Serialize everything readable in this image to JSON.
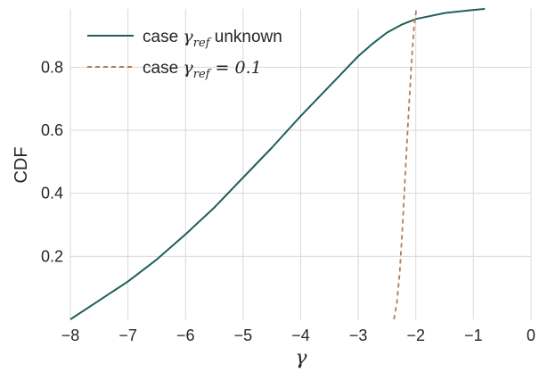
{
  "chart_data": {
    "type": "line",
    "xlabel": "γ",
    "ylabel": "CDF",
    "xlim": [
      -8,
      0
    ],
    "ylim": [
      0,
      0.985
    ],
    "xticks": [
      "−8",
      "−7",
      "−6",
      "−5",
      "−4",
      "−3",
      "−2",
      "−1",
      "0"
    ],
    "yticks": [
      "0.2",
      "0.4",
      "0.6",
      "0.8"
    ],
    "grid": true,
    "legend_position": "top-left",
    "series": [
      {
        "name": "case γref unknown",
        "name_prefix": "case ",
        "name_math": "γ",
        "name_sub": "ref",
        "name_suffix": " unknown",
        "style": "solid",
        "color": "#1f5f5b",
        "x": [
          -8.0,
          -7.5,
          -7.0,
          -6.5,
          -6.0,
          -5.5,
          -5.0,
          -4.5,
          -4.0,
          -3.5,
          -3.0,
          -2.75,
          -2.5,
          -2.25,
          -2.0,
          -1.5,
          -1.0,
          -0.8
        ],
        "y": [
          0.0,
          0.06,
          0.12,
          0.19,
          0.27,
          0.355,
          0.45,
          0.545,
          0.645,
          0.74,
          0.835,
          0.875,
          0.91,
          0.935,
          0.953,
          0.972,
          0.982,
          0.985
        ]
      },
      {
        "name": "case γref = 0.1",
        "name_prefix": "case ",
        "name_math": "γ",
        "name_sub": "ref",
        "name_suffix": " = 0.1",
        "style": "dashed",
        "color": "#b57d4f",
        "x": [
          -2.38,
          -2.33,
          -2.28,
          -2.23,
          -2.18,
          -2.13,
          -2.08,
          -2.03,
          -1.99
        ],
        "y": [
          0.0,
          0.05,
          0.15,
          0.3,
          0.47,
          0.64,
          0.8,
          0.93,
          0.985
        ]
      }
    ]
  }
}
